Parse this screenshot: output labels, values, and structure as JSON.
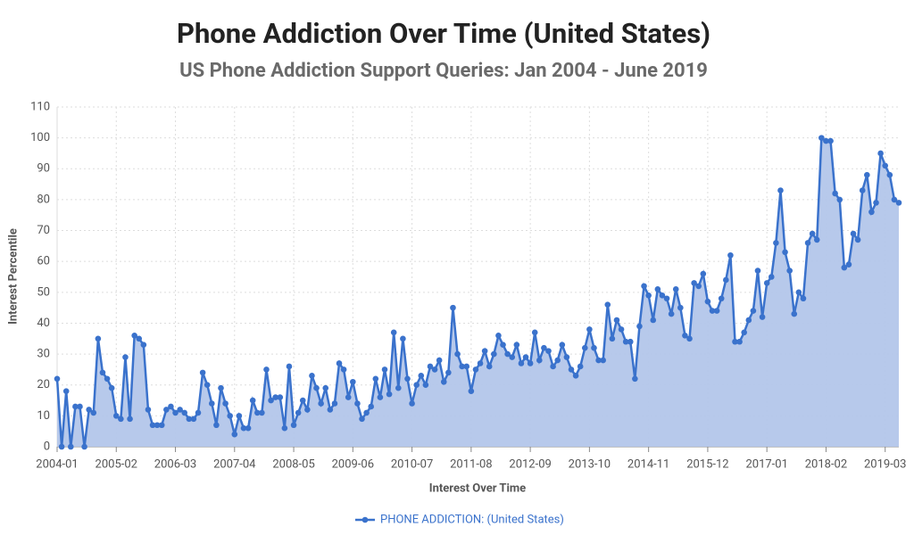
{
  "chart_data": {
    "type": "area-line",
    "title": "Phone Addiction Over Time (United States)",
    "subtitle": "US Phone Addiction Support Queries: Jan 2004 - June 2019",
    "x_label": "Interest Over Time",
    "y_label": "Interest Percentile",
    "categories": [
      "2004-01",
      null,
      null,
      null,
      null,
      null,
      null,
      null,
      null,
      null,
      null,
      null,
      null,
      "2005-02",
      null,
      null,
      null,
      null,
      null,
      null,
      null,
      null,
      null,
      null,
      null,
      null,
      "2006-03",
      null,
      null,
      null,
      null,
      null,
      null,
      null,
      null,
      null,
      null,
      null,
      null,
      "2007-04",
      null,
      null,
      null,
      null,
      null,
      null,
      null,
      null,
      null,
      null,
      null,
      null,
      "2008-05",
      null,
      null,
      null,
      null,
      null,
      null,
      null,
      null,
      null,
      null,
      null,
      null,
      "2009-06",
      null,
      null,
      null,
      null,
      null,
      null,
      null,
      null,
      null,
      null,
      null,
      null,
      "2010-07",
      null,
      null,
      null,
      null,
      null,
      null,
      null,
      null,
      null,
      null,
      null,
      null,
      "2011-08",
      null,
      null,
      null,
      null,
      null,
      null,
      null,
      null,
      null,
      null,
      null,
      null,
      "2012-09",
      null,
      null,
      null,
      null,
      null,
      null,
      null,
      null,
      null,
      null,
      null,
      null,
      "2013-10",
      null,
      null,
      null,
      null,
      null,
      null,
      null,
      null,
      null,
      null,
      null,
      null,
      "2014-11",
      null,
      null,
      null,
      null,
      null,
      null,
      null,
      null,
      null,
      null,
      null,
      null,
      "2015-12",
      null,
      null,
      null,
      null,
      null,
      null,
      null,
      null,
      null,
      null,
      null,
      null,
      "2017-01",
      null,
      null,
      null,
      null,
      null,
      null,
      null,
      null,
      null,
      null,
      null,
      null,
      "2018-02",
      null,
      null,
      null,
      null,
      null,
      null,
      null,
      null,
      null,
      null,
      null,
      null,
      "2019-03",
      null,
      null,
      null
    ],
    "series": [
      {
        "name": "PHONE ADDICTION: (United States)",
        "color": "#3a72cc",
        "fill": "#b3c6ea",
        "values": [
          22,
          0,
          18,
          0,
          13,
          13,
          0,
          12,
          11,
          35,
          24,
          22,
          19,
          10,
          9,
          29,
          9,
          36,
          35,
          33,
          12,
          7,
          7,
          7,
          12,
          13,
          11,
          12,
          11,
          9,
          9,
          11,
          24,
          20,
          14,
          7,
          19,
          14,
          10,
          4,
          10,
          6,
          6,
          15,
          11,
          11,
          25,
          15,
          16,
          16,
          6,
          26,
          7,
          11,
          15,
          12,
          23,
          19,
          14,
          19,
          12,
          14,
          27,
          25,
          16,
          21,
          14,
          9,
          11,
          13,
          22,
          16,
          25,
          17,
          37,
          19,
          35,
          22,
          14,
          20,
          23,
          20,
          26,
          25,
          28,
          21,
          24,
          45,
          30,
          26,
          26,
          18,
          25,
          27,
          31,
          26,
          30,
          36,
          33,
          30,
          29,
          33,
          27,
          29,
          27,
          37,
          28,
          32,
          31,
          26,
          28,
          33,
          29,
          25,
          23,
          26,
          32,
          38,
          32,
          28,
          28,
          46,
          35,
          41,
          38,
          34,
          34,
          22,
          39,
          52,
          49,
          41,
          51,
          49,
          48,
          43,
          51,
          45,
          36,
          35,
          53,
          52,
          56,
          47,
          44,
          44,
          48,
          54,
          62,
          34,
          34,
          37,
          41,
          44,
          57,
          42,
          53,
          55,
          66,
          83,
          63,
          57,
          43,
          50,
          48,
          66,
          69,
          67,
          100,
          99,
          99,
          82,
          80,
          58,
          59,
          69,
          67,
          83,
          88,
          76,
          79,
          95,
          91,
          88,
          80,
          79
        ]
      }
    ],
    "ylim": [
      0,
      110
    ],
    "yticks": [
      0,
      10,
      20,
      30,
      40,
      50,
      60,
      70,
      80,
      90,
      100,
      110
    ],
    "grid": true
  }
}
